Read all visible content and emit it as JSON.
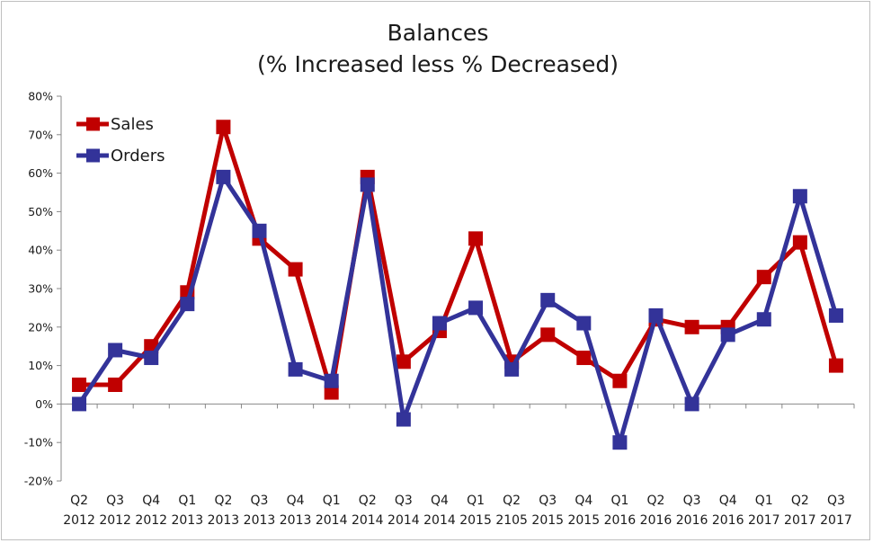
{
  "chart_data": {
    "type": "line",
    "title": "Balances",
    "subtitle": "(% Increased less % Decreased)",
    "xlabel": "",
    "ylabel": "",
    "ylim": [
      -20,
      80
    ],
    "ytick_step": 10,
    "ytick_labels": [
      "-20%",
      "-10%",
      "0%",
      "10%",
      "20%",
      "30%",
      "40%",
      "50%",
      "60%",
      "70%",
      "80%"
    ],
    "grid": false,
    "legend_position": "top-left",
    "categories": [
      [
        "Q2",
        "2012"
      ],
      [
        "Q3",
        "2012"
      ],
      [
        "Q4",
        "2012"
      ],
      [
        "Q1",
        "2013"
      ],
      [
        "Q2",
        "2013"
      ],
      [
        "Q3",
        "2013"
      ],
      [
        "Q4",
        "2013"
      ],
      [
        "Q1",
        "2014"
      ],
      [
        "Q2",
        "2014"
      ],
      [
        "Q3",
        "2014"
      ],
      [
        "Q4",
        "2014"
      ],
      [
        "Q1",
        "2015"
      ],
      [
        "Q2",
        "2105"
      ],
      [
        "Q3",
        "2015"
      ],
      [
        "Q4",
        "2015"
      ],
      [
        "Q1",
        "2016"
      ],
      [
        "Q2",
        "2016"
      ],
      [
        "Q3",
        "2016"
      ],
      [
        "Q4",
        "2016"
      ],
      [
        "Q1",
        "2017"
      ],
      [
        "Q2",
        "2017"
      ],
      [
        "Q3",
        "2017"
      ]
    ],
    "series": [
      {
        "name": "Sales",
        "color": "#c00000",
        "values": [
          5,
          5,
          15,
          29,
          72,
          43,
          35,
          3,
          59,
          11,
          19,
          43,
          11,
          18,
          12,
          6,
          22,
          20,
          20,
          33,
          42,
          10
        ]
      },
      {
        "name": "Orders",
        "color": "#333399",
        "values": [
          0,
          14,
          12,
          26,
          59,
          45,
          9,
          6,
          57,
          -4,
          21,
          25,
          9,
          27,
          21,
          -10,
          23,
          0,
          18,
          22,
          54,
          23
        ]
      }
    ]
  }
}
